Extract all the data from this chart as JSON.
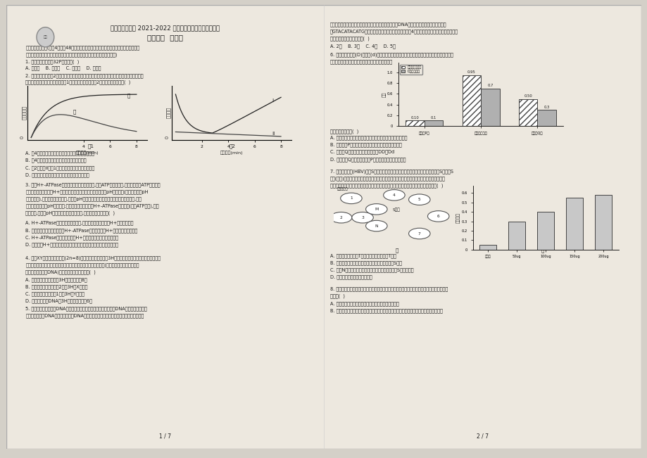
{
  "background_color": "#d4d0c8",
  "paper_color": "#ede8df",
  "text_color": "#1a1a1a",
  "title_line1": "天津市南开中学 2021-2022 学年度第二学期开学学情调查",
  "title_line2": "高三年级  生物学",
  "section1": "一、单项选择题：(每题4分，共48分，在题目给出的四个选项中，只有一项是最符合题目要",
  "section1b": "求的，每小题选出答案后，请用铅笔把答题卡上对应题目的答案标号涂黑。)",
  "q1": "1. 以下物质中可以用32P标记的是(  )",
  "q1ans": "A. 核糖糖    B. 氨基酸    C. 胆固醇    D. 丙酮酸",
  "q2": "2. 取某一红色花冠的2个大小相同、生理状态相似的花瓣细胞，将它们分别放置在甲、乙两种溶",
  "q2b": "液中，观察细胞失水量的变化如图1，液泡直径的变化如图2，下列叙述正确的是(  )",
  "fig1_ylabel": "细胞失水量",
  "fig1_xlabel": "处理时间(min)",
  "fig1_label": "图1",
  "fig1_jia": "甲",
  "fig1_yi": "乙",
  "fig2_ylabel": "液泡直径",
  "fig2_xlabel": "处理时间(min)",
  "fig2_label": "图2",
  "fig2_I": "I",
  "fig2_II": "II",
  "q2_A": "A. 第4分钟前甲溶液中花瓣细胞的失水速率小于乙溶液",
  "q2_B": "B. 第4分钟后乙溶液中细胞由于失水过多而死亡",
  "q2_C": "C. 图2中曲线II和图1中甲溶液中细胞失水量曲线对应",
  "q2_D": "D. 甲、乙两种溶液的浓度不同，溶质种类可能相同",
  "q3": "3. 某种H+-ATPase是一种位于膜上的载体蛋白,具有ATP水解酶活性,能够利用水解ATP释放的能",
  "q3b": "量逆浓度梯度跨膜转运H+。将某植物气孔的保卫细胞悬浮在一定pH的溶液中(假设细胞内的pH",
  "q3c": "高于细胞外),置于暗中一段时间后,溶液的pH不变。再将含有保卫细胞的该溶液分成两组,一组",
  "q3d": "照射蓝光后溶液的pH明显降低;另一组先在溶液中加入H+-ATPase的抑制剂(抑制ATP水解),再用",
  "q3e": "蓝光照射,溶液的pH不变。根据上述实验结果,下列推测不合理的是(  )",
  "q3_A": "A. H+-ATPase位于保卫细胞质膜上,蓝光能够刺激细胞内的H+转运到细胞外",
  "q3_B": "B. 蓝光通过保卫细胞质膜上的H+-ATPase发挥作用导致H+逆浓度梯度跨膜运输",
  "q3_C": "C. H+-ATPase逆浓度梯度转运H+所需的能量可由蓝光直接提供",
  "q3_D": "D. 溶液中的H+不能通过自由扩散的方式通过保卫细胞质膜进入保卫细胞",
  "q4": "4. 取某XY型性别决定的动物(2n=8)的一个精原细胞，在含3H标记脱氧嘧啶核苷酸的培养基中完成一",
  "q4b": "轮细胞周期，将所得子细胞全部转移至普通培养基中完成减数分裂(不考虑染色体片段交换、实",
  "q4c": "验误差和细胞凋亡DNA)，下列相关叙述错误的是(  )",
  "q4_A": "A. 一个初级精母细胞中含3H的染色体共有8条",
  "q4_B": "B. 一次级精母细胞可能有2条含3H的X染色体",
  "q4_C": "C. 一个精细胞中可能有1条含3H的Y染色体",
  "q4_D": "D. 该过程形成的DNA含3H的精细胞可能有6个",
  "q5": "5. 双脱氧核苷酸常用于DNA测序，其结构与脱氧核苷酸相似，能参与DNA的合成，且遵循碱",
  "q5b": "基互补对原则，DNA子链合成时，在DNA聚合酶作用下，若链接上的是双脱氧核苷酸，子链",
  "page1": "1 / 7",
  "q5r_a": "链终结，若链接上的是双脱氧核苷酸，子链延伸终结，在DNA人工合成体系中，有适量的序列",
  "q5r_b": "为GTACATACATG的单链模板，磷酸嘌呤双脱氧核苷酸和4种脱氧核苷酸，以该单链为模板合成",
  "q5r_c": "出的不同长度的子链最多有(  )",
  "q5r_ans": "A. 2种    B. 3种    C. 4种    D. 5种",
  "q6": "6. 藏鼠的体毛深色(D)对浅色(d)为显性，若毛色与环境差异大则易被天敌捕食，调查不同区域藏",
  "q6b": "鼠颜色表型频率，检测并计算基因频率，结果如图，",
  "bar_categories": [
    "浅色岩P区",
    "深色煤洞库区",
    "浅色岩Q区"
  ],
  "bar_series1": [
    0.1,
    0.95,
    0.5
  ],
  "bar_series2": [
    0.1,
    0.7,
    0.3
  ],
  "bar_series1_label": "深色表现型频率",
  "bar_series2_label": "D基因的频率",
  "bar_values_s1": [
    "0.10",
    "0.95",
    "0.50"
  ],
  "bar_values_s2": [
    "0.1",
    "0.7",
    "0.3"
  ],
  "bar_ylabel": "频率",
  "q6_intro": "下列叙述描述的是(  )",
  "q6_A": "A. 深色藏鼠与浅色藏鼠在不同区域的分布现状受自然选择影响",
  "q6_B": "B. 与浅色岩P区相比，深色络岩库区藏鼠的杂合体频率低",
  "q6_C": "C. 浅色岩Q区的深色藏鼠的基因型为DD、Dd",
  "q6_D": "D. 与深色岩Q区相比，浅色岩P区藏鼠的雌性纯合体频率高",
  "q7": "7. 编码乙肝病毒(HBV)表面S蛋白的基因疫苗，被小白鼠骨髓肌细胞吸收后可表达出S蛋白，S",
  "q7b": "蛋白(抗原)引发一系列的体液免疫和细胞免疫。图甲中数字代表细胞，字母代表生理过程，细胞",
  "q7c": "可寄导靶细胞裂解；图乙中抗体效价用衡量免疫效果的数量单位表示，有关分析错误的是(  )",
  "fig_jia": "甲",
  "fig_yi": "乙",
  "dendritic": "树突状细胞",
  "s_protein": "S蛋白",
  "antibody_ylabel": "抗体效价",
  "antibody_doses": [
    "对照组",
    "50ug",
    "100ug",
    "150ug",
    "200ug"
  ],
  "antibody_values": [
    0.05,
    0.3,
    0.4,
    0.55,
    0.58
  ],
  "q7_A": "A. 图甲中细胞和均是T细胞，细胞是指靶特异T细胞",
  "q7_B": "B. 射突状细胞的功能是识别和处理抗原，呈递抗原S蛋白",
  "q7_C": "C. 图甲N位置形成的细胞与细胞细胞膜上均结合抗原S蛋白的受体",
  "q7_D": "D. 图乙可用空基因载体作对照组",
  "q8": "8. 我国的许多古文、诗词和农谚都蕴藏先辈的智慧，同时也遵循着生物学原理，下列相关叙述错",
  "q8b": "误的是(  )",
  "q8_A": "A. 草盛豆苗稀和朝耕相争表明了竞争可以影响种群数量",
  "q8_B": "B. 今人有五于不为步，子又有五，大父未死而有二十五孙，是以人民众而财货寡，事力劳而",
  "page2": "2 / 7"
}
